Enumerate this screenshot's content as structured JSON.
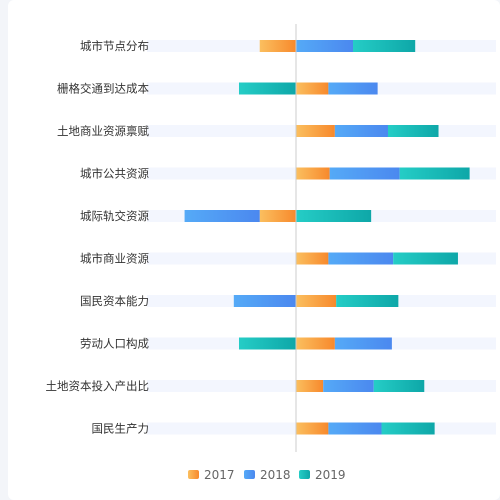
{
  "chart_data": {
    "type": "bar",
    "orientation": "horizontal",
    "stacked": "diverging",
    "title": "",
    "xlabel": "",
    "ylabel": "",
    "grid": false,
    "legend_position": "bottom",
    "categories": [
      "城市节点分布",
      "栅格交通到达成本",
      "土地商业资源禀赋",
      "城市公共资源",
      "城际轨交资源",
      "城市商业资源",
      "国民资本能力",
      "劳动人口构成",
      "土地资本投入产出比",
      "国民生产力"
    ],
    "series": [
      {
        "name": "2017",
        "values": [
          -28,
          25,
          30,
          26,
          -28,
          25,
          31,
          30,
          21,
          25
        ]
      },
      {
        "name": "2018",
        "values": [
          44,
          38,
          41,
          54,
          -58,
          50,
          -48,
          44,
          39,
          41
        ]
      },
      {
        "name": "2019",
        "values": [
          48,
          -44,
          39,
          54,
          58,
          50,
          48,
          -44,
          39,
          41
        ]
      }
    ],
    "xlim": [
      -115,
      155
    ],
    "colors": {
      "2017": [
        "#fbbf5f",
        "#f7892c"
      ],
      "2018": [
        "#55aaf7",
        "#4b88ef"
      ],
      "2019": [
        "#25cdc6",
        "#0ea7a8"
      ],
      "track": "#f3f6fe",
      "axis": "#cccccc"
    }
  }
}
